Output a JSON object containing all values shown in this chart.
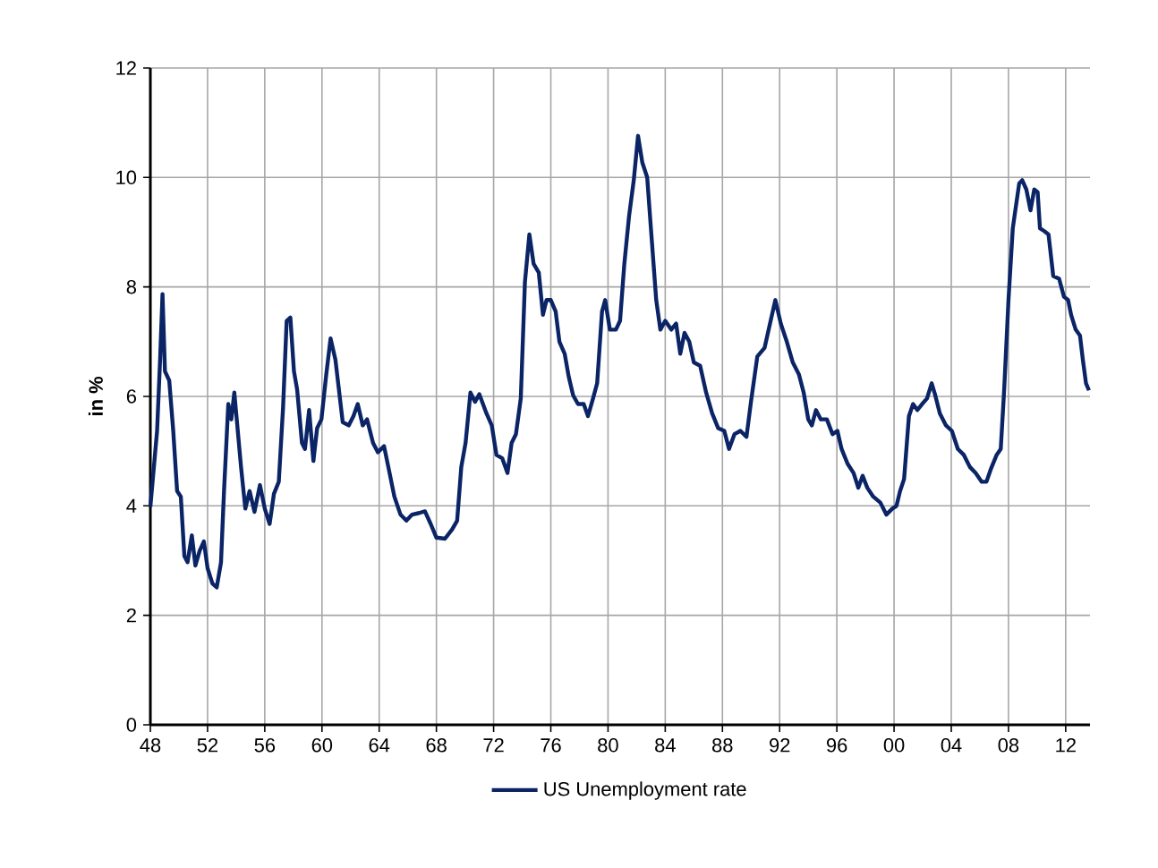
{
  "chart_data": {
    "type": "line",
    "ylabel": "in %",
    "xlim": [
      1948,
      2013.7
    ],
    "ylim": [
      0,
      12
    ],
    "xticks": [
      {
        "value": 1948,
        "label": "48"
      },
      {
        "value": 1952,
        "label": "52"
      },
      {
        "value": 1956,
        "label": "56"
      },
      {
        "value": 1960,
        "label": "60"
      },
      {
        "value": 1964,
        "label": "64"
      },
      {
        "value": 1968,
        "label": "68"
      },
      {
        "value": 1972,
        "label": "72"
      },
      {
        "value": 1976,
        "label": "76"
      },
      {
        "value": 1980,
        "label": "80"
      },
      {
        "value": 1984,
        "label": "84"
      },
      {
        "value": 1988,
        "label": "88"
      },
      {
        "value": 1992,
        "label": "92"
      },
      {
        "value": 1996,
        "label": "96"
      },
      {
        "value": 2000,
        "label": "00"
      },
      {
        "value": 2004,
        "label": "04"
      },
      {
        "value": 2008,
        "label": "08"
      },
      {
        "value": 2012,
        "label": "12"
      }
    ],
    "yticks": [
      0,
      2,
      4,
      6,
      8,
      10,
      12
    ],
    "grid": true,
    "legend": "bottom",
    "line_style": "solid",
    "x": [
      1948.0,
      1948.47,
      1948.68,
      1948.85,
      1949.02,
      1949.32,
      1949.6,
      1949.87,
      1950.13,
      1950.38,
      1950.6,
      1950.9,
      1951.15,
      1951.45,
      1951.74,
      1952.0,
      1952.34,
      1952.64,
      1952.94,
      1953.15,
      1953.45,
      1953.66,
      1953.87,
      1954.04,
      1954.34,
      1954.64,
      1954.94,
      1955.28,
      1955.66,
      1956.0,
      1956.34,
      1956.64,
      1956.98,
      1957.28,
      1957.53,
      1957.79,
      1958.04,
      1958.26,
      1958.6,
      1958.81,
      1959.1,
      1959.4,
      1959.66,
      1959.96,
      1960.3,
      1960.6,
      1960.94,
      1961.23,
      1961.45,
      1961.87,
      1962.2,
      1962.5,
      1962.85,
      1963.15,
      1963.57,
      1963.91,
      1964.34,
      1964.64,
      1965.06,
      1965.49,
      1965.9,
      1966.3,
      1966.8,
      1967.2,
      1967.6,
      1968.0,
      1968.6,
      1969.1,
      1969.45,
      1969.74,
      1970.04,
      1970.38,
      1970.7,
      1971.0,
      1971.5,
      1971.87,
      1972.2,
      1972.6,
      1972.97,
      1973.26,
      1973.56,
      1973.9,
      1974.19,
      1974.5,
      1974.8,
      1975.16,
      1975.45,
      1975.7,
      1976.0,
      1976.34,
      1976.6,
      1976.97,
      1977.26,
      1977.56,
      1977.9,
      1978.3,
      1978.6,
      1978.95,
      1979.24,
      1979.58,
      1979.8,
      1980.13,
      1980.55,
      1980.84,
      1981.14,
      1981.47,
      1981.8,
      1982.1,
      1982.4,
      1982.74,
      1983.03,
      1983.37,
      1983.66,
      1984.0,
      1984.42,
      1984.76,
      1985.05,
      1985.35,
      1985.68,
      1986.0,
      1986.44,
      1986.86,
      1987.28,
      1987.7,
      1988.13,
      1988.46,
      1988.84,
      1989.26,
      1989.68,
      1990.0,
      1990.44,
      1990.95,
      1991.37,
      1991.7,
      1992.08,
      1992.5,
      1992.92,
      1993.35,
      1993.68,
      1994.0,
      1994.25,
      1994.54,
      1994.88,
      1995.3,
      1995.7,
      1996.04,
      1996.33,
      1996.75,
      1997.17,
      1997.5,
      1997.8,
      1998.13,
      1998.54,
      1999.04,
      1999.46,
      1999.88,
      2000.17,
      2000.42,
      2000.7,
      2001.04,
      2001.33,
      2001.63,
      2001.96,
      2002.3,
      2002.63,
      2002.88,
      2003.2,
      2003.63,
      2004.04,
      2004.46,
      2004.88,
      2005.3,
      2005.7,
      2006.13,
      2006.46,
      2006.75,
      2007.17,
      2007.46,
      2007.7,
      2008.0,
      2008.3,
      2008.54,
      2008.75,
      2008.96,
      2009.25,
      2009.54,
      2009.8,
      2010.04,
      2010.2,
      2010.5,
      2010.8,
      2011.13,
      2011.54,
      2011.88,
      2012.17,
      2012.38,
      2012.7,
      2013.0,
      2013.2,
      2013.42,
      2013.63
    ],
    "series": [
      {
        "name": "US Unemployment rate",
        "color": "#0a2466",
        "values": [
          3.98,
          5.37,
          6.67,
          7.87,
          6.46,
          6.29,
          5.37,
          4.27,
          4.17,
          3.08,
          2.97,
          3.46,
          2.91,
          3.18,
          3.35,
          2.86,
          2.58,
          2.51,
          2.97,
          4.27,
          5.86,
          5.58,
          6.07,
          5.58,
          4.71,
          3.95,
          4.27,
          3.89,
          4.38,
          3.95,
          3.67,
          4.22,
          4.44,
          5.8,
          7.38,
          7.44,
          6.46,
          6.13,
          5.15,
          5.04,
          5.75,
          4.82,
          5.42,
          5.58,
          6.4,
          7.06,
          6.67,
          6.02,
          5.53,
          5.47,
          5.64,
          5.86,
          5.47,
          5.58,
          5.15,
          4.98,
          5.09,
          4.71,
          4.17,
          3.84,
          3.73,
          3.84,
          3.87,
          3.9,
          3.67,
          3.42,
          3.4,
          3.57,
          3.73,
          4.71,
          5.15,
          6.07,
          5.9,
          6.04,
          5.69,
          5.47,
          4.93,
          4.87,
          4.6,
          5.15,
          5.31,
          5.96,
          8.09,
          8.96,
          8.42,
          8.26,
          7.49,
          7.76,
          7.76,
          7.55,
          7.0,
          6.78,
          6.35,
          6.02,
          5.86,
          5.86,
          5.64,
          5.96,
          6.24,
          7.55,
          7.76,
          7.22,
          7.22,
          7.38,
          8.42,
          9.29,
          9.95,
          10.76,
          10.27,
          10.0,
          8.96,
          7.76,
          7.22,
          7.38,
          7.22,
          7.33,
          6.78,
          7.16,
          7.0,
          6.62,
          6.56,
          6.07,
          5.69,
          5.42,
          5.37,
          5.04,
          5.31,
          5.37,
          5.26,
          5.91,
          6.73,
          6.89,
          7.38,
          7.76,
          7.33,
          7.0,
          6.62,
          6.4,
          6.07,
          5.58,
          5.47,
          5.75,
          5.58,
          5.58,
          5.31,
          5.37,
          5.04,
          4.77,
          4.6,
          4.33,
          4.55,
          4.33,
          4.17,
          4.06,
          3.84,
          3.95,
          4.0,
          4.27,
          4.49,
          5.64,
          5.86,
          5.75,
          5.86,
          5.96,
          6.24,
          6.02,
          5.69,
          5.47,
          5.37,
          5.04,
          4.93,
          4.71,
          4.6,
          4.44,
          4.44,
          4.66,
          4.93,
          5.04,
          6.13,
          7.76,
          9.07,
          9.51,
          9.89,
          9.95,
          9.78,
          9.4,
          9.78,
          9.73,
          9.07,
          9.02,
          8.96,
          8.2,
          8.15,
          7.82,
          7.76,
          7.49,
          7.22,
          7.11,
          6.67,
          6.24,
          6.11
        ]
      }
    ]
  }
}
